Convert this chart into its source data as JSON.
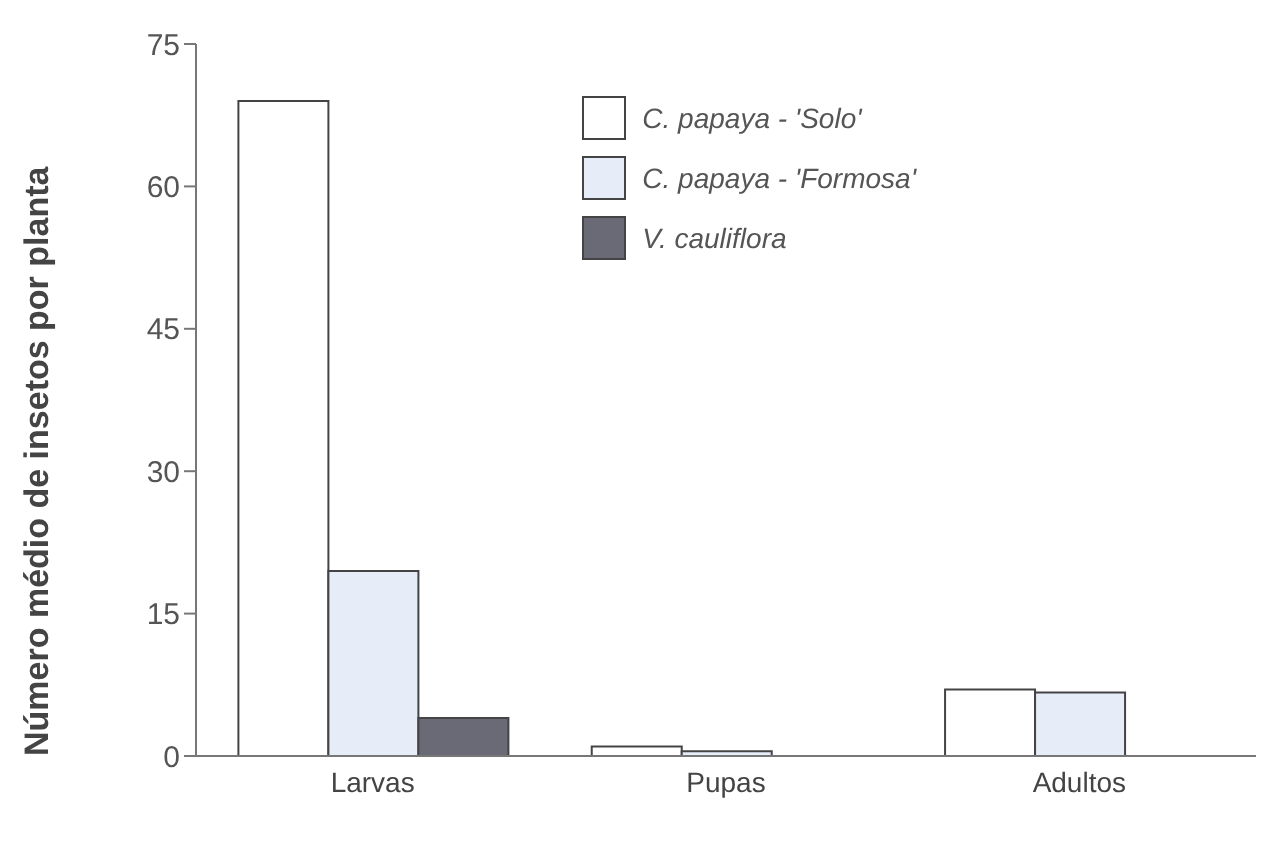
{
  "chart_data": {
    "type": "bar",
    "ylabel": "Número médio de insetos por planta",
    "categories": [
      "Larvas",
      "Pupas",
      "Adultos"
    ],
    "series": [
      {
        "name": "C. papaya - 'Solo'",
        "color": "#ffffff",
        "values": [
          69,
          1,
          7
        ]
      },
      {
        "name": "C. papaya - 'Formosa'",
        "color": "#e6edf8",
        "values": [
          19.5,
          0.5,
          6.7
        ]
      },
      {
        "name": "V. cauliflora",
        "color": "#6a6a76",
        "values": [
          4,
          0,
          0
        ]
      }
    ],
    "ylim": [
      0,
      75
    ],
    "yticks": [
      0,
      15,
      30,
      45,
      60,
      75
    ],
    "grid": false,
    "legend": "top right"
  }
}
